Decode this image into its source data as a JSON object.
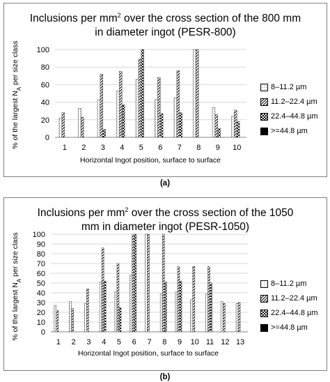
{
  "colors": {
    "bar_stroke": "#595959",
    "grid": "#d9d9d9",
    "axis": "#868686",
    "solid_fill": "#000000"
  },
  "subfigure_labels": [
    "(a)",
    "(b)"
  ],
  "chart_data": [
    {
      "type": "bar",
      "title_parts": {
        "pre": "Inclusions per mm",
        "sup": "2",
        "line1_post": " over the cross section of the 800 mm",
        "line2": "in diameter ingot (PESR-800)"
      },
      "xlabel": "Horizontal Ingot position, surface to surface",
      "ylabel_parts": {
        "pre": "% of the largest N",
        "sub": "A",
        "post": " per size class"
      },
      "ylim": [
        0,
        100
      ],
      "yticks": [
        "0",
        "20",
        "40",
        "60",
        "80",
        "100"
      ],
      "grid": true,
      "legend_position": "right",
      "categories": [
        "1",
        "2",
        "3",
        "4",
        "5",
        "6",
        "7",
        "8",
        "9",
        "10"
      ],
      "series": [
        {
          "name": "8–11.2 µm",
          "pattern": "dots",
          "values": [
            22,
            33,
            43,
            53,
            66,
            43,
            45,
            100,
            34,
            24
          ]
        },
        {
          "name": "11.2–22.4 µm",
          "pattern": "diagonal",
          "values": [
            28,
            23,
            72,
            75,
            89,
            68,
            76,
            100,
            26,
            31
          ]
        },
        {
          "name": "22.4–44.8 µm",
          "pattern": "checker",
          "values": [
            0,
            0,
            9,
            37,
            100,
            27,
            28,
            0,
            10,
            18
          ]
        },
        {
          "name": ">=44.8 µm",
          "pattern": "solid",
          "values": [
            0,
            0,
            0,
            0,
            0,
            0,
            0,
            0,
            0,
            0
          ]
        }
      ]
    },
    {
      "type": "bar",
      "title_parts": {
        "pre": "Inclusions per mm",
        "sup": "2",
        "line1_post": " over the cross section of the 1050",
        "line2": "mm in diameter ingot (PESR-1050)"
      },
      "xlabel": "Horizontal Ingot position, surface to surface",
      "ylabel_parts": {
        "pre": "% of the largest N",
        "sub": "A",
        "post": " per size class"
      },
      "ylim": [
        0,
        100
      ],
      "yticks": [
        "0",
        "10",
        "20",
        "30",
        "40",
        "50",
        "60",
        "70",
        "80",
        "90",
        "100"
      ],
      "grid": true,
      "legend_position": "right",
      "categories": [
        "1",
        "2",
        "3",
        "4",
        "5",
        "6",
        "7",
        "8",
        "9",
        "10",
        "11",
        "12",
        "13"
      ],
      "series": [
        {
          "name": "8–11.2 µm",
          "pattern": "dots",
          "values": [
            27,
            31,
            29,
            51,
            41,
            58,
            100,
            39,
            41,
            33,
            39,
            31,
            29
          ]
        },
        {
          "name": "11.2–22.4 µm",
          "pattern": "diagonal",
          "values": [
            22,
            24,
            44,
            86,
            70,
            100,
            100,
            100,
            67,
            67,
            67,
            29,
            30
          ]
        },
        {
          "name": "22.4–44.8 µm",
          "pattern": "checker",
          "values": [
            0,
            0,
            0,
            52,
            25,
            100,
            0,
            51,
            52,
            0,
            50,
            0,
            0
          ]
        },
        {
          "name": ">=44.8 µm",
          "pattern": "solid",
          "values": [
            0,
            0,
            0,
            0,
            0,
            0,
            0,
            0,
            0,
            0,
            0,
            0,
            0
          ]
        }
      ]
    }
  ]
}
